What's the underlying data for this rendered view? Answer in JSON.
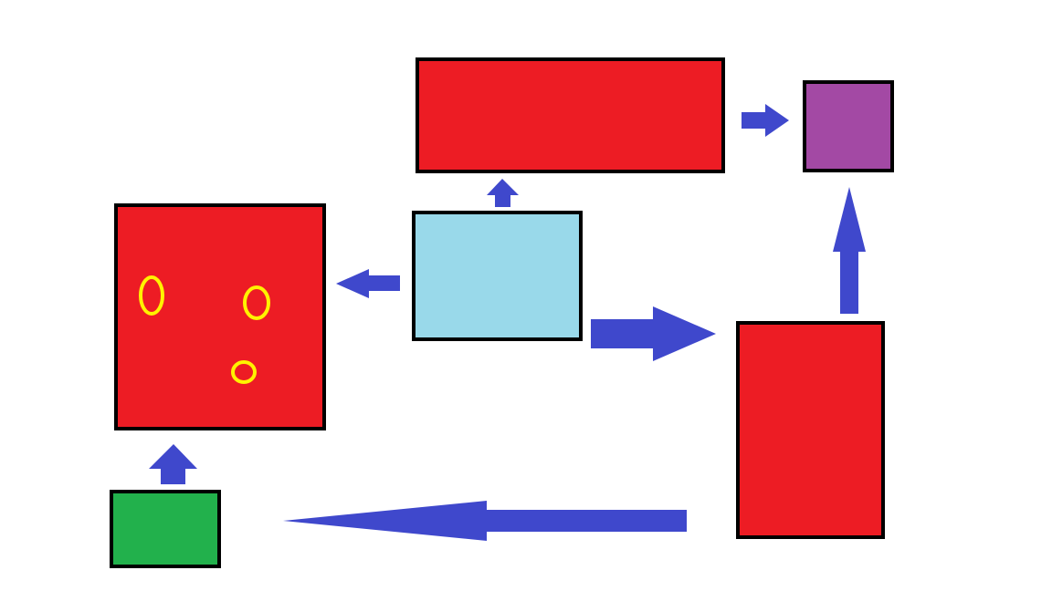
{
  "colors": {
    "background": "#ffffff",
    "red_box": "#ed1c24",
    "light_blue_box": "#99d9ea",
    "purple_box": "#a349a4",
    "green_box": "#22b14c",
    "arrow": "#3f48cc",
    "yellow_mark": "#fff200",
    "outline": "#000000"
  },
  "nodes": [
    {
      "id": "top-red",
      "shape": "rectangle",
      "color": "red_box"
    },
    {
      "id": "purple",
      "shape": "square",
      "color": "purple_box"
    },
    {
      "id": "left-red",
      "shape": "square",
      "color": "red_box",
      "marks": 3
    },
    {
      "id": "center-light-blue",
      "shape": "rectangle",
      "color": "light_blue_box"
    },
    {
      "id": "right-red",
      "shape": "tall rectangle",
      "color": "red_box"
    },
    {
      "id": "green",
      "shape": "rectangle",
      "color": "green_box"
    }
  ],
  "edges": [
    {
      "from": "top-red",
      "to": "purple"
    },
    {
      "from": "center-light-blue",
      "to": "top-red"
    },
    {
      "from": "center-light-blue",
      "to": "left-red"
    },
    {
      "from": "center-light-blue",
      "to": "right-red"
    },
    {
      "from": "right-red",
      "to": "purple"
    },
    {
      "from": "right-red",
      "to": "green"
    },
    {
      "from": "green",
      "to": "left-red"
    }
  ]
}
